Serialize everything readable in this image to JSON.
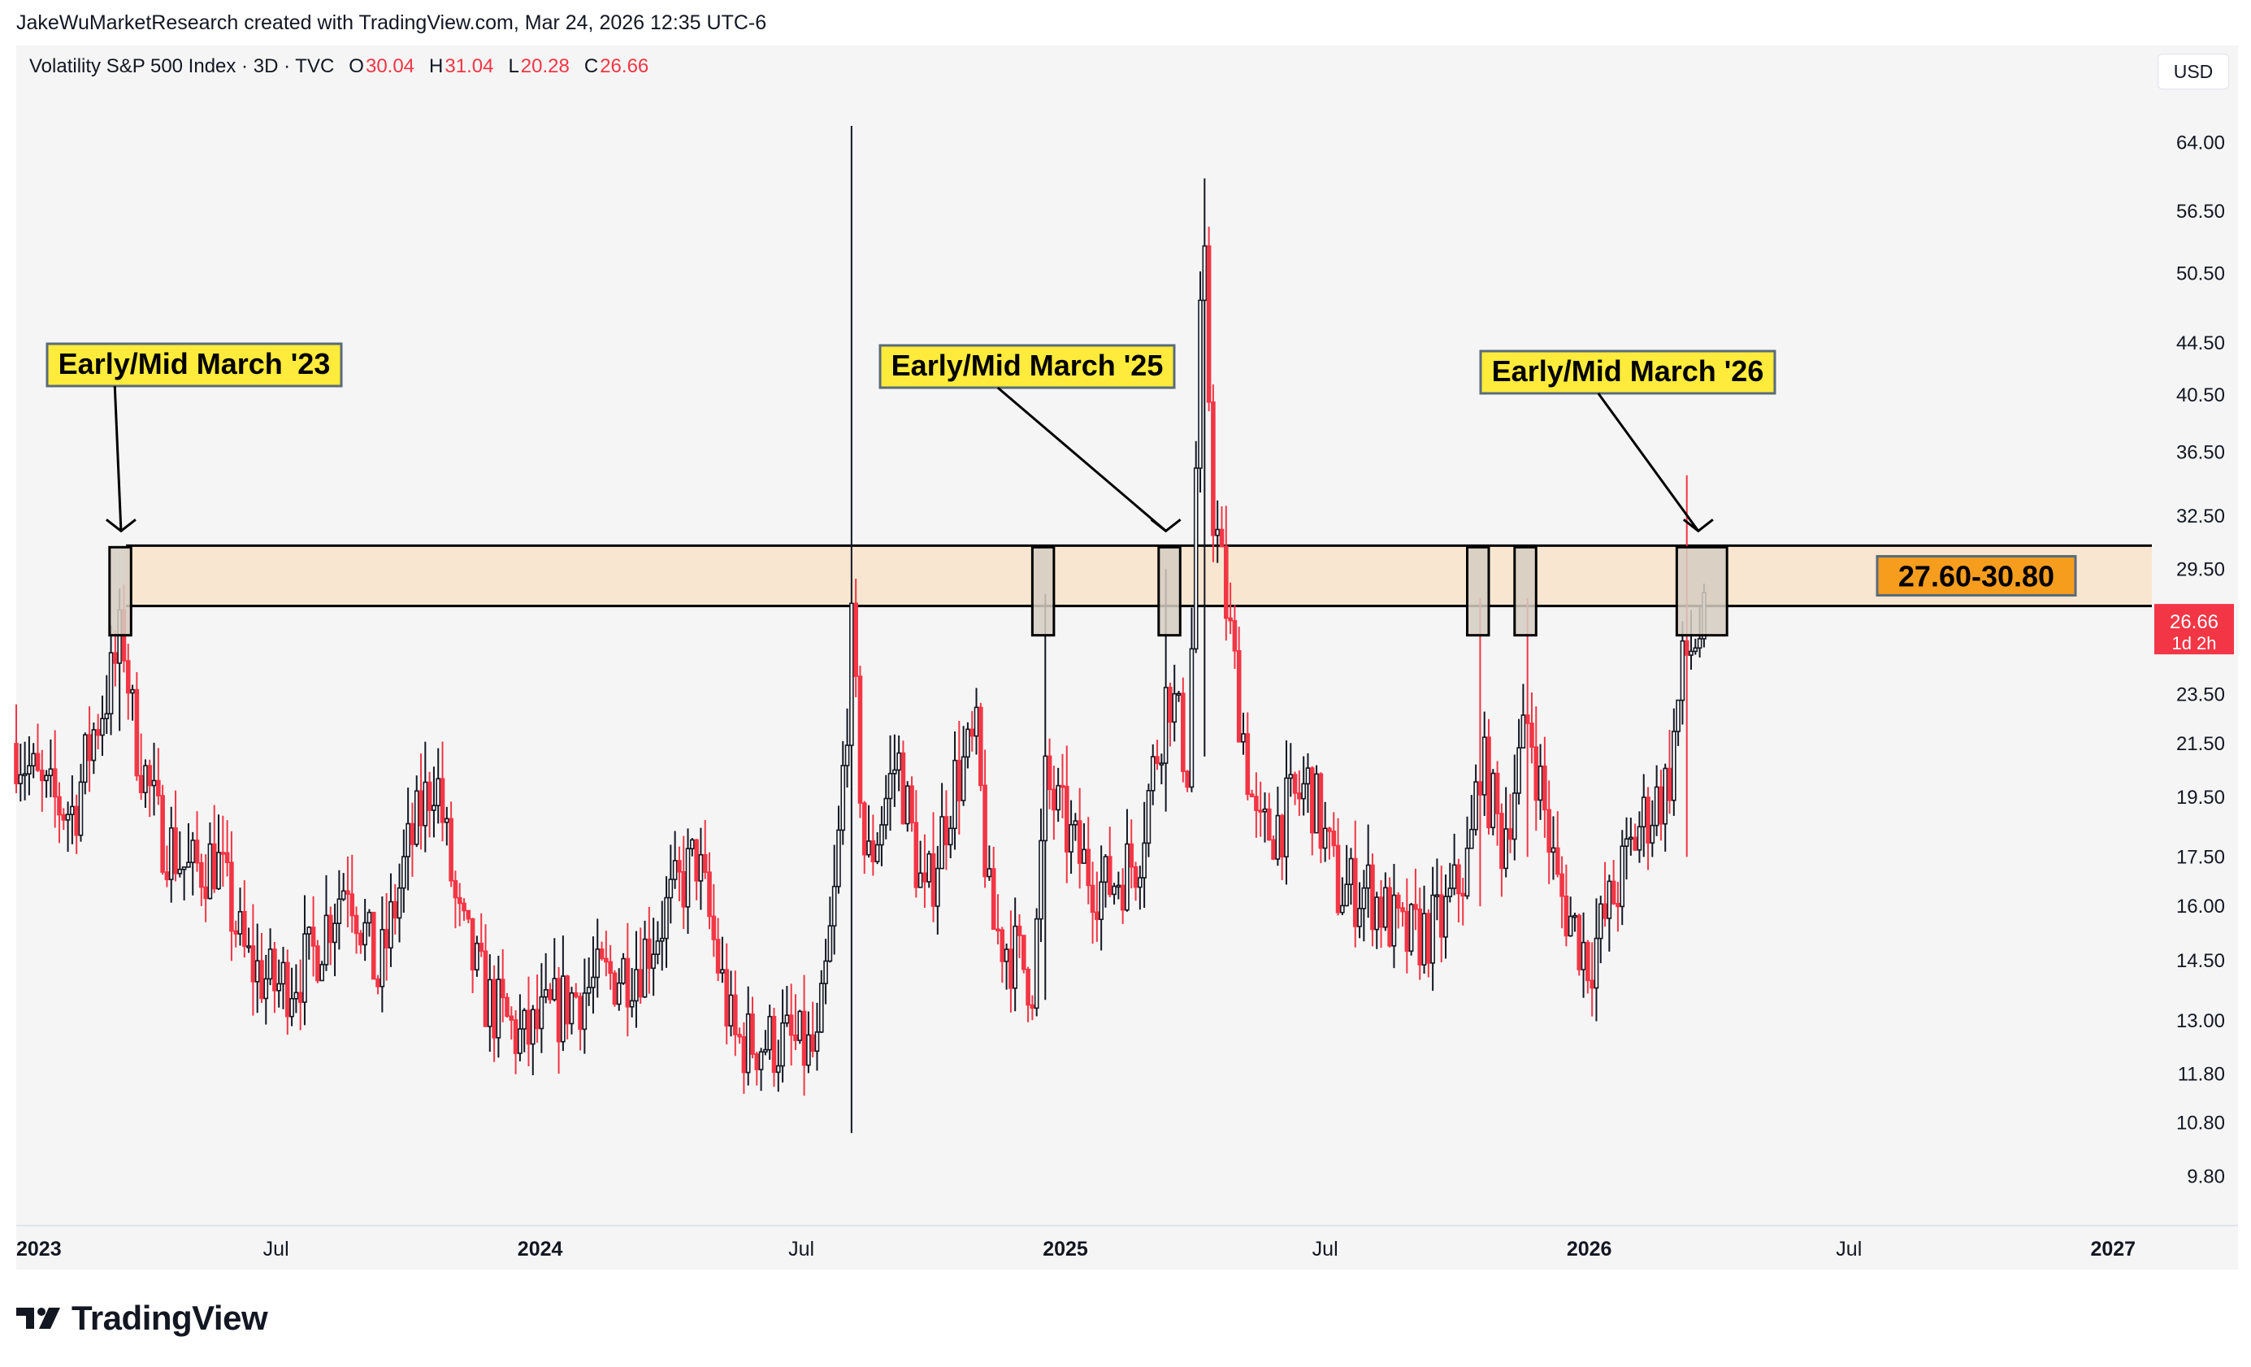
{
  "attribution": "JakeWuMarketResearch created with TradingView.com, Mar 24, 2026 12:35 UTC-6",
  "legend": {
    "title": "Volatility S&P 500 Index · 3D · TVC",
    "o_label": "O",
    "o_value": "30.04",
    "h_label": "H",
    "h_value": "31.04",
    "l_label": "L",
    "l_value": "20.28",
    "c_label": "C",
    "c_value": "26.66"
  },
  "currency": "USD",
  "price_tag": {
    "value": "26.66",
    "countdown": "1d 2h"
  },
  "footer": {
    "brand": "TradingView",
    "logo_icon": "tradingview-logo-icon"
  },
  "colors": {
    "up": "#131722",
    "down": "#f23645",
    "zone": "#f8e6d0",
    "box": "#d5ccc2",
    "label_yellow": "#ffeb3b",
    "zone_label": "#f79d1e"
  },
  "chart_data": {
    "type": "candlestick",
    "title": "Volatility S&P 500 Index · 3D · TVC",
    "y_scale": "log",
    "ylim": [
      9,
      70
    ],
    "y_ticks": [
      64.0,
      56.5,
      50.5,
      44.5,
      40.5,
      36.5,
      32.5,
      29.5,
      23.5,
      21.5,
      19.5,
      17.5,
      16.0,
      14.5,
      13.0,
      11.8,
      10.8,
      9.8
    ],
    "y_tick_labels": [
      "64.00",
      "56.50",
      "50.50",
      "44.50",
      "40.50",
      "36.50",
      "32.50",
      "29.50",
      "23.50",
      "21.50",
      "19.50",
      "17.50",
      "16.00",
      "14.50",
      "13.00",
      "11.80",
      "10.80",
      "9.80"
    ],
    "x_range": [
      "2023-01-01",
      "2027-02-01"
    ],
    "x_ticks": [
      {
        "date": "2023-01-01",
        "label": "2023",
        "bold": true
      },
      {
        "date": "2023-07-01",
        "label": "Jul",
        "bold": false
      },
      {
        "date": "2024-01-01",
        "label": "2024",
        "bold": true
      },
      {
        "date": "2024-07-01",
        "label": "Jul",
        "bold": false
      },
      {
        "date": "2025-01-01",
        "label": "2025",
        "bold": true
      },
      {
        "date": "2025-07-01",
        "label": "Jul",
        "bold": false
      },
      {
        "date": "2026-01-01",
        "label": "2026",
        "bold": true
      },
      {
        "date": "2026-07-01",
        "label": "Jul",
        "bold": false
      },
      {
        "date": "2027-01-01",
        "label": "2027",
        "bold": true
      }
    ],
    "series": [
      {
        "name": "Volatility S&P 500 Index",
        "anchors": [
          [
            "2023-01-01",
            21.5
          ],
          [
            "2023-01-20",
            19.5
          ],
          [
            "2023-02-10",
            19.0
          ],
          [
            "2023-02-24",
            22.0
          ],
          [
            "2023-03-10",
            24.5
          ],
          [
            "2023-03-16",
            26.5
          ],
          [
            "2023-03-24",
            22.0
          ],
          [
            "2023-04-10",
            18.5
          ],
          [
            "2023-05-01",
            17.0
          ],
          [
            "2023-05-20",
            17.5
          ],
          [
            "2023-06-10",
            14.5
          ],
          [
            "2023-07-01",
            13.8
          ],
          [
            "2023-07-25",
            14.5
          ],
          [
            "2023-08-20",
            17.0
          ],
          [
            "2023-09-10",
            14.0
          ],
          [
            "2023-09-30",
            17.5
          ],
          [
            "2023-10-20",
            20.5
          ],
          [
            "2023-11-05",
            15.5
          ],
          [
            "2023-11-25",
            13.5
          ],
          [
            "2023-12-20",
            12.5
          ],
          [
            "2024-01-20",
            13.5
          ],
          [
            "2024-02-15",
            14.0
          ],
          [
            "2024-03-10",
            14.5
          ],
          [
            "2024-04-19",
            17.5
          ],
          [
            "2024-05-15",
            12.5
          ],
          [
            "2024-06-20",
            12.5
          ],
          [
            "2024-07-12",
            12.2
          ],
          [
            "2024-07-25",
            16.5
          ],
          [
            "2024-08-05",
            26.0
          ],
          [
            "2024-08-15",
            17.0
          ],
          [
            "2024-09-06",
            21.0
          ],
          [
            "2024-09-25",
            16.0
          ],
          [
            "2024-10-15",
            20.0
          ],
          [
            "2024-10-31",
            21.5
          ],
          [
            "2024-11-10",
            15.5
          ],
          [
            "2024-12-10",
            14.0
          ],
          [
            "2024-12-18",
            20.0
          ],
          [
            "2025-01-10",
            17.5
          ],
          [
            "2025-01-28",
            16.5
          ],
          [
            "2025-02-20",
            17.5
          ],
          [
            "2025-03-05",
            21.0
          ],
          [
            "2025-03-14",
            24.0
          ],
          [
            "2025-03-28",
            20.5
          ],
          [
            "2025-04-04",
            44.0
          ],
          [
            "2025-04-08",
            50.0
          ],
          [
            "2025-04-14",
            33.0
          ],
          [
            "2025-04-28",
            25.0
          ],
          [
            "2025-05-15",
            18.0
          ],
          [
            "2025-06-05",
            19.0
          ],
          [
            "2025-06-20",
            20.0
          ],
          [
            "2025-07-10",
            16.5
          ],
          [
            "2025-08-01",
            16.5
          ],
          [
            "2025-08-25",
            15.0
          ],
          [
            "2025-09-20",
            15.5
          ],
          [
            "2025-10-10",
            17.5
          ],
          [
            "2025-10-17",
            21.0
          ],
          [
            "2025-11-01",
            18.0
          ],
          [
            "2025-11-20",
            22.5
          ],
          [
            "2025-12-10",
            16.5
          ],
          [
            "2026-01-01",
            14.5
          ],
          [
            "2026-01-20",
            16.5
          ],
          [
            "2026-02-05",
            18.5
          ],
          [
            "2026-02-25",
            20.0
          ],
          [
            "2026-03-08",
            25.0
          ],
          [
            "2026-03-16",
            26.0
          ],
          [
            "2026-03-24",
            26.66
          ]
        ],
        "spikes": [
          {
            "date": "2023-03-13",
            "high": 28.5,
            "low": 22.0
          },
          {
            "date": "2024-08-05",
            "high": 66.0,
            "low": 10.6
          },
          {
            "date": "2024-12-18",
            "high": 28.2,
            "low": 13.5
          },
          {
            "date": "2025-03-11",
            "high": 29.5,
            "low": 19.0
          },
          {
            "date": "2025-04-08",
            "high": 60.0,
            "low": 21.0
          },
          {
            "date": "2025-10-17",
            "high": 28.0,
            "low": 16.0
          },
          {
            "date": "2025-11-20",
            "high": 28.0,
            "low": 17.5
          },
          {
            "date": "2026-03-10",
            "high": 35.0,
            "low": 17.5
          },
          {
            "date": "2026-03-24",
            "high": 31.04,
            "low": 20.28
          }
        ]
      }
    ],
    "zone": {
      "low": 27.6,
      "high": 30.8,
      "label": "27.60-30.80"
    },
    "highlight_boxes": [
      {
        "start": "2023-03-07",
        "end": "2023-03-22"
      },
      {
        "start": "2024-12-09",
        "end": "2024-12-24"
      },
      {
        "start": "2025-03-07",
        "end": "2025-03-22"
      },
      {
        "start": "2025-10-08",
        "end": "2025-10-23"
      },
      {
        "start": "2025-11-10",
        "end": "2025-11-25"
      },
      {
        "start": "2026-03-03",
        "end": "2026-04-07"
      }
    ],
    "annotations": [
      {
        "text": "Early/Mid March '23",
        "target_date": "2023-03-15"
      },
      {
        "text": "Early/Mid March '25",
        "target_date": "2025-03-12"
      },
      {
        "text": "Early/Mid March '26",
        "target_date": "2026-03-18"
      }
    ],
    "last_price": 26.66
  }
}
